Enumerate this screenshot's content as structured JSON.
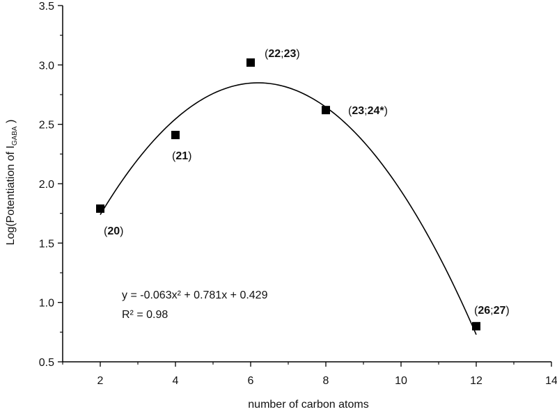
{
  "chart_data": {
    "type": "scatter",
    "xlabel": "number of carbon atoms",
    "ylabel": {
      "prefix": "Log(Potentiation of I",
      "sub": "GABA",
      "suffix": " )"
    },
    "xlim": [
      1,
      14
    ],
    "ylim": [
      0.5,
      3.5
    ],
    "x_ticks": [
      "2",
      "4",
      "6",
      "8",
      "10",
      "12",
      "14"
    ],
    "y_ticks": [
      "0.5",
      "1.0",
      "1.5",
      "2.0",
      "2.5",
      "3.0",
      "3.5"
    ],
    "grid": false,
    "points": [
      {
        "x": 2,
        "y": 1.79,
        "label": {
          "open": "(",
          "b1": "20",
          "sep": "",
          "b2": "",
          "close": ")"
        }
      },
      {
        "x": 4,
        "y": 2.41,
        "label": {
          "open": "(",
          "b1": "21",
          "sep": "",
          "b2": "",
          "close": ")"
        }
      },
      {
        "x": 6,
        "y": 3.02,
        "label": {
          "open": "(",
          "b1": "22",
          "sep": ";",
          "b2": "23",
          "close": ")"
        }
      },
      {
        "x": 8,
        "y": 2.62,
        "label": {
          "open": "(",
          "b1": "23",
          "sep": ";",
          "b2": "24*",
          "close": ")"
        }
      },
      {
        "x": 12,
        "y": 0.8,
        "label": {
          "open": "(",
          "b1": "26",
          "sep": ";",
          "b2": "27",
          "close": ")"
        }
      }
    ],
    "fit": {
      "a": -0.063,
      "b": 0.781,
      "c": 0.429,
      "x_range": [
        2,
        12
      ]
    },
    "annotation": {
      "equation": "y = -0.063x² + 0.781x + 0.429",
      "r2": "R² = 0.98"
    }
  }
}
